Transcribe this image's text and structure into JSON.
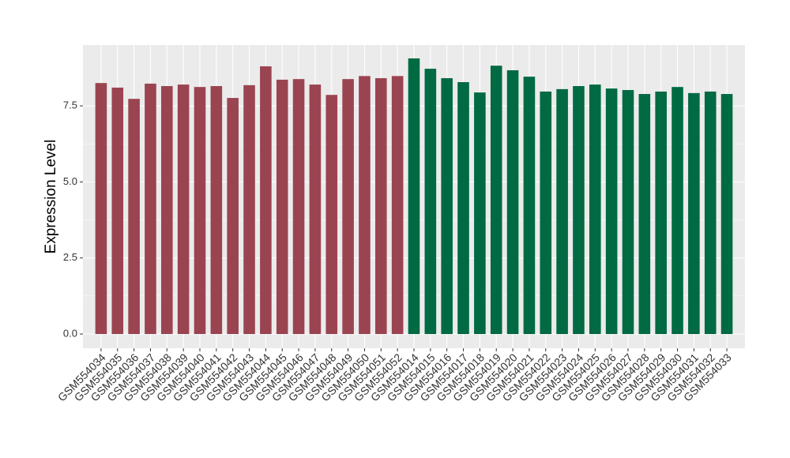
{
  "chart_data": {
    "type": "bar",
    "y_label": "Expression Level",
    "categories": [
      "GSM554034",
      "GSM554035",
      "GSM554036",
      "GSM554037",
      "GSM554038",
      "GSM554039",
      "GSM554040",
      "GSM554041",
      "GSM554042",
      "GSM554043",
      "GSM554044",
      "GSM554045",
      "GSM554046",
      "GSM554047",
      "GSM554048",
      "GSM554049",
      "GSM554050",
      "GSM554051",
      "GSM554052",
      "GSM554014",
      "GSM554015",
      "GSM554016",
      "GSM554017",
      "GSM554018",
      "GSM554019",
      "GSM554020",
      "GSM554021",
      "GSM554022",
      "GSM554023",
      "GSM554024",
      "GSM554025",
      "GSM554026",
      "GSM554027",
      "GSM554028",
      "GSM554029",
      "GSM554030",
      "GSM554031",
      "GSM554032",
      "GSM554033"
    ],
    "values": [
      8.25,
      8.1,
      7.73,
      8.23,
      8.15,
      8.2,
      8.12,
      8.15,
      7.76,
      8.18,
      8.8,
      8.36,
      8.38,
      8.2,
      7.86,
      8.38,
      8.48,
      8.41,
      8.48,
      9.06,
      8.72,
      8.41,
      8.28,
      7.94,
      8.82,
      8.67,
      8.46,
      7.97,
      8.05,
      8.15,
      8.2,
      8.07,
      8.02,
      7.89,
      7.97,
      8.12,
      7.92,
      7.97,
      7.89
    ],
    "colors": [
      "#9b4451",
      "#9b4451",
      "#9b4451",
      "#9b4451",
      "#9b4451",
      "#9b4451",
      "#9b4451",
      "#9b4451",
      "#9b4451",
      "#9b4451",
      "#9b4451",
      "#9b4451",
      "#9b4451",
      "#9b4451",
      "#9b4451",
      "#9b4451",
      "#9b4451",
      "#9b4451",
      "#9b4451",
      "#006a43",
      "#006a43",
      "#006a43",
      "#006a43",
      "#006a43",
      "#006a43",
      "#006a43",
      "#006a43",
      "#006a43",
      "#006a43",
      "#006a43",
      "#006a43",
      "#006a43",
      "#006a43",
      "#006a43",
      "#006a43",
      "#006a43",
      "#006a43",
      "#006a43",
      "#006a43"
    ],
    "ylim": [
      -0.467,
      9.5
    ],
    "yticks": [
      {
        "value": 0,
        "label": "0.0"
      },
      2.5,
      {
        "value": 5,
        "label": "5.0"
      },
      7.5
    ],
    "grid": true
  }
}
